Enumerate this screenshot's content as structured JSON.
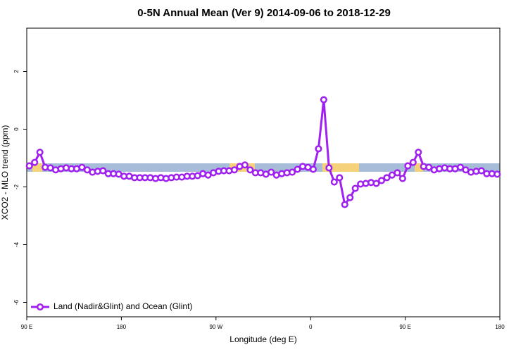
{
  "chart_data": {
    "type": "line",
    "title": "0-5N Annual Mean (Ver 9)   2014-09-06 to 2018-12-29",
    "x_label": "Longitude (deg E)",
    "y_label": "XCO2 - MLO trend (ppm)",
    "xlim": [
      90,
      540
    ],
    "ylim": [
      -6.5,
      3.5
    ],
    "xticks": [
      {
        "value": 90,
        "label": "90 E"
      },
      180,
      {
        "value": 270,
        "label": "90 W"
      },
      {
        "value": 360,
        "label": "0"
      },
      {
        "value": 450,
        "label": "90 E"
      },
      {
        "value": 540,
        "label": "180"
      }
    ],
    "yticks": [
      -6,
      -4,
      -2,
      0,
      2
    ],
    "legend": "bottom-left",
    "x": [
      92.5,
      97.5,
      102.5,
      107.5,
      112.5,
      117.5,
      122.5,
      127.5,
      132.5,
      137.5,
      142.5,
      147.5,
      152.5,
      157.5,
      162.5,
      167.5,
      172.5,
      177.5,
      182.5,
      187.5,
      192.5,
      197.5,
      202.5,
      207.5,
      212.5,
      217.5,
      222.5,
      227.5,
      232.5,
      237.5,
      242.5,
      247.5,
      252.5,
      257.5,
      262.5,
      267.5,
      272.5,
      277.5,
      282.5,
      287.5,
      292.5,
      297.5,
      302.5,
      307.5,
      312.5,
      317.5,
      322.5,
      327.5,
      332.5,
      337.5,
      342.5,
      347.5,
      352.5,
      357.5,
      362.5,
      367.5,
      372.5,
      377.5,
      382.5,
      387.5,
      392.5,
      397.5,
      402.5,
      407.5,
      412.5,
      417.5,
      422.5,
      427.5,
      432.5,
      437.5,
      442.5,
      447.5,
      452.5,
      457.5,
      462.5,
      467.5,
      472.5,
      477.5,
      482.5,
      487.5,
      492.5,
      497.5,
      502.5,
      507.5,
      512.5,
      517.5,
      522.5,
      527.5,
      532.5,
      537.5
    ],
    "series": [
      {
        "name": "Land (Nadir&Glint) and Ocean (Glint)",
        "color": "#a020f0",
        "values": [
          -1.27,
          -1.15,
          -0.8,
          -1.32,
          -1.34,
          -1.41,
          -1.37,
          -1.34,
          -1.37,
          -1.37,
          -1.32,
          -1.41,
          -1.49,
          -1.46,
          -1.44,
          -1.54,
          -1.54,
          -1.56,
          -1.63,
          -1.63,
          -1.68,
          -1.68,
          -1.68,
          -1.68,
          -1.71,
          -1.68,
          -1.71,
          -1.68,
          -1.66,
          -1.66,
          -1.63,
          -1.63,
          -1.61,
          -1.54,
          -1.59,
          -1.51,
          -1.46,
          -1.44,
          -1.44,
          -1.41,
          -1.29,
          -1.24,
          -1.41,
          -1.51,
          -1.51,
          -1.56,
          -1.49,
          -1.59,
          -1.54,
          -1.51,
          -1.49,
          -1.39,
          -1.29,
          -1.32,
          -1.39,
          -0.68,
          1.02,
          -1.34,
          -1.83,
          -1.68,
          -2.61,
          -2.37,
          -2.05,
          -1.9,
          -1.88,
          -1.85,
          -1.88,
          -1.78,
          -1.68,
          -1.59,
          -1.51,
          -1.71,
          -1.27,
          -1.15,
          -0.8,
          -1.29,
          -1.32,
          -1.41,
          -1.37,
          -1.34,
          -1.37,
          -1.37,
          -1.32,
          -1.41,
          -1.49,
          -1.46,
          -1.44,
          -1.54,
          -1.54,
          -1.56
        ]
      }
    ]
  }
}
